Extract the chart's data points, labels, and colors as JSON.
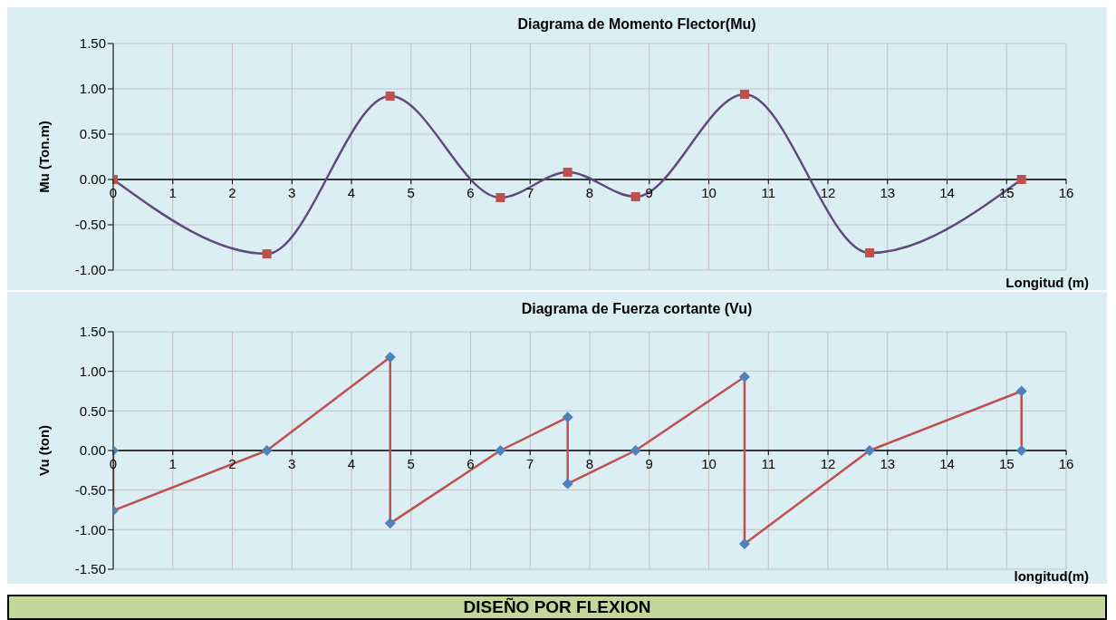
{
  "chart_data": [
    {
      "type": "line",
      "title": "Diagrama  de Momento  Flector(Mu)",
      "xlabel": "Longitud (m)",
      "ylabel": "Mu (Ton.m)",
      "xlim": [
        0,
        16
      ],
      "xticks": [
        0,
        1,
        2,
        3,
        4,
        5,
        6,
        7,
        8,
        9,
        10,
        11,
        12,
        13,
        14,
        15,
        16
      ],
      "ylim": [
        -1,
        1.5
      ],
      "yticks": [
        {
          "value": -1,
          "label": "-1.00"
        },
        {
          "value": -0.5,
          "label": "-0.50"
        },
        {
          "value": 0,
          "label": "0.00"
        },
        {
          "value": 0.5,
          "label": "0.50"
        },
        {
          "value": 1,
          "label": "1.00"
        },
        {
          "value": 1.5,
          "label": "1.50"
        }
      ],
      "grid": true,
      "legend": false,
      "marker": "square",
      "series": [
        {
          "color": "#604a7b",
          "colors": [
            "#c0504d",
            "#c0504d",
            "#c0504d",
            "#c0504d",
            "#c0504d",
            "#c0504d",
            "#c0504d",
            "#c0504d",
            "#c0504d"
          ],
          "x": [
            0,
            2.58,
            4.65,
            6.5,
            7.63,
            8.77,
            10.6,
            12.7,
            15.25
          ],
          "values": [
            0,
            -0.82,
            0.92,
            -0.2,
            0.08,
            -0.19,
            0.94,
            -0.81,
            0
          ]
        }
      ]
    },
    {
      "type": "line",
      "title": "Diagrama  de Fuerza cortante  (Vu)",
      "xlabel": "longitud(m)",
      "ylabel": "Vu (ton)",
      "xlim": [
        0,
        16
      ],
      "xticks": [
        0,
        1,
        2,
        3,
        4,
        5,
        6,
        7,
        8,
        9,
        10,
        11,
        12,
        13,
        14,
        15,
        16
      ],
      "ylim": [
        -1.5,
        1.5
      ],
      "yticks": [
        {
          "value": -1.5,
          "label": "-1.50"
        },
        {
          "value": -1,
          "label": "-1.00"
        },
        {
          "value": -0.5,
          "label": "-0.50"
        },
        {
          "value": 0,
          "label": "0.00"
        },
        {
          "value": 0.5,
          "label": "0.50"
        },
        {
          "value": 1,
          "label": "1.00"
        },
        {
          "value": 1.5,
          "label": "1.50"
        }
      ],
      "grid": true,
      "legend": false,
      "marker": "diamond",
      "series": [
        {
          "color": "#c0504d",
          "colors": [
            "#4f81bd",
            "#4f81bd",
            "#4f81bd",
            "#4f81bd",
            "#4f81bd",
            "#4f81bd",
            "#4f81bd",
            "#4f81bd",
            "#4f81bd",
            "#4f81bd",
            "#4f81bd",
            "#4f81bd",
            "#4f81bd",
            "#4f81bd"
          ],
          "x": [
            0,
            0,
            2.58,
            4.65,
            4.65,
            6.5,
            7.63,
            7.63,
            8.77,
            10.6,
            10.6,
            12.7,
            15.25,
            15.25
          ],
          "values": [
            0,
            -0.76,
            0,
            1.18,
            -0.92,
            0,
            0.42,
            -0.42,
            0,
            0.93,
            -1.18,
            0,
            0.75,
            0
          ]
        }
      ]
    },
    {
      "type": "other",
      "title": "DISEÑO POR FLEXION"
    }
  ]
}
